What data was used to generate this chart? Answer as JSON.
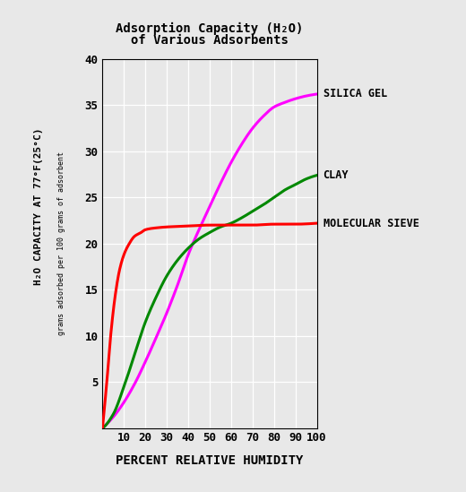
{
  "title_line1": "Adsorption Capacity (H₂O)",
  "title_line2": "of Various Adsorbents",
  "xlabel": "PERCENT RELATIVE HUMIDITY",
  "ylabel_main": "H₂O CAPACITY AT 77°F(25°C)",
  "ylabel_sub": "grams adsorbed per 100 grams of adsorbent",
  "xlim": [
    0,
    100
  ],
  "ylim": [
    0,
    40
  ],
  "xticks": [
    10,
    20,
    30,
    40,
    50,
    60,
    70,
    80,
    90,
    100
  ],
  "yticks": [
    5,
    10,
    15,
    20,
    25,
    30,
    35,
    40
  ],
  "silica_gel_color": "#FF00FF",
  "clay_color": "#008800",
  "mol_sieve_color": "#FF0000",
  "background_color": "#E8E8E8",
  "grid_color": "#FFFFFF",
  "label_silica": "SILICA GEL",
  "label_clay": "CLAY",
  "label_mol_sieve": "MOLECULAR SIEVE",
  "line_width": 2.2,
  "silica_x_pts": [
    0,
    5,
    10,
    15,
    20,
    25,
    30,
    35,
    40,
    45,
    50,
    55,
    60,
    65,
    70,
    75,
    80,
    85,
    90,
    95,
    100
  ],
  "silica_y_pts": [
    0,
    1.2,
    2.8,
    4.8,
    7.2,
    9.8,
    12.5,
    15.5,
    18.8,
    21.5,
    24.0,
    26.5,
    28.8,
    30.8,
    32.5,
    33.8,
    34.8,
    35.3,
    35.7,
    36.0,
    36.2
  ],
  "clay_x_pts": [
    0,
    5,
    10,
    15,
    20,
    25,
    30,
    35,
    40,
    45,
    50,
    55,
    60,
    65,
    70,
    75,
    80,
    85,
    90,
    95,
    100
  ],
  "clay_y_pts": [
    0,
    1.5,
    4.5,
    8.0,
    11.5,
    14.2,
    16.5,
    18.2,
    19.5,
    20.5,
    21.2,
    21.8,
    22.2,
    22.8,
    23.5,
    24.2,
    25.0,
    25.8,
    26.4,
    27.0,
    27.4
  ],
  "ms_x_pts": [
    0,
    2,
    4,
    6,
    8,
    10,
    12,
    15,
    18,
    20,
    25,
    30,
    40,
    50,
    60,
    70,
    80,
    90,
    100
  ],
  "ms_y_pts": [
    0,
    5.0,
    10.5,
    14.5,
    17.2,
    18.8,
    19.8,
    20.8,
    21.2,
    21.5,
    21.7,
    21.8,
    21.9,
    22.0,
    22.0,
    22.0,
    22.1,
    22.1,
    22.2
  ]
}
